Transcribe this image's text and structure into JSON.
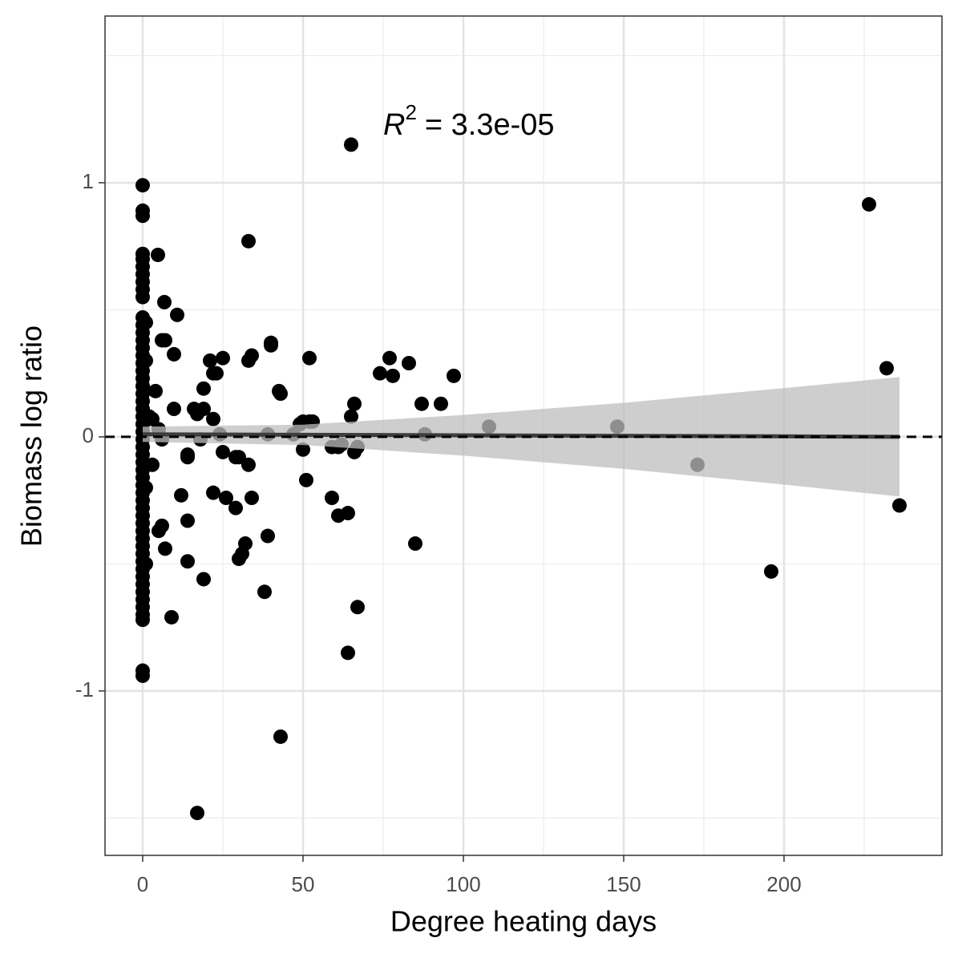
{
  "chart_data": {
    "type": "scatter",
    "x_label": "Degree heating days",
    "y_label": "Biomass log ratio",
    "annotation": {
      "symbol": "R",
      "power": "2",
      "text": "= 3.3e-05"
    },
    "xlim": [
      -11.75,
      249.25
    ],
    "ylim": [
      -1.647,
      1.656
    ],
    "xticks": [
      0,
      50,
      100,
      150,
      200
    ],
    "yticks": [
      -1,
      0,
      1
    ],
    "x_minor_ticks": [
      25,
      75,
      125,
      175,
      225
    ],
    "y_minor_ticks": [
      -1.5,
      -0.5,
      0.5,
      1.5
    ],
    "grid": true,
    "point_color": "#000000",
    "hline": 0,
    "points": {
      "x": [
        0,
        0,
        0,
        0,
        0,
        0,
        0,
        0,
        0,
        0,
        0,
        0,
        0,
        0,
        0,
        0,
        0,
        0,
        0,
        0,
        0,
        0,
        0,
        0,
        0,
        0,
        0,
        0,
        0,
        0,
        0,
        0,
        0,
        0,
        0,
        0,
        0,
        0,
        0,
        0,
        0,
        0,
        0,
        0,
        0,
        0,
        0,
        0,
        0,
        0,
        0,
        0,
        0,
        1,
        1,
        1,
        1,
        65,
        226.5,
        33,
        4.75,
        6.75,
        10.75,
        6,
        7,
        9.75,
        21,
        25,
        33,
        34,
        40,
        40,
        52,
        42.5,
        43,
        22,
        23,
        19,
        4,
        9.75,
        16,
        17,
        19,
        22,
        2,
        3,
        5,
        6,
        18,
        24,
        25,
        29,
        30,
        33,
        39,
        14,
        14,
        3,
        47,
        49,
        50,
        52,
        53,
        50,
        51,
        59,
        61,
        62,
        65,
        66,
        67,
        66,
        74,
        77,
        78,
        83,
        87,
        88,
        93,
        97,
        108,
        148,
        173,
        196,
        232,
        236,
        85,
        67,
        64,
        64,
        61,
        59,
        43,
        17,
        9,
        19,
        14,
        7,
        6,
        5,
        14,
        12,
        22,
        26,
        29,
        34,
        30,
        31,
        32,
        38,
        39
      ],
      "y": [
        0.99,
        0.89,
        0.87,
        0.72,
        0.7,
        0.67,
        0.64,
        0.61,
        0.58,
        0.55,
        0.47,
        0.44,
        0.41,
        0.38,
        0.35,
        0.32,
        0.29,
        0.26,
        0.23,
        0.2,
        0.17,
        0.14,
        0.11,
        0.08,
        0.05,
        0.02,
        -0.01,
        -0.04,
        -0.07,
        -0.1,
        -0.13,
        -0.16,
        -0.19,
        -0.22,
        -0.25,
        -0.28,
        -0.31,
        -0.34,
        -0.37,
        -0.4,
        -0.43,
        -0.46,
        -0.49,
        -0.52,
        -0.55,
        -0.58,
        -0.61,
        -0.64,
        -0.67,
        -0.7,
        -0.72,
        -0.92,
        -0.94,
        0.45,
        0.3,
        -0.2,
        -0.5,
        1.15,
        0.915,
        0.77,
        0.716,
        0.53,
        0.48,
        0.38,
        0.38,
        0.325,
        0.3,
        0.31,
        0.3,
        0.32,
        0.37,
        0.36,
        0.31,
        0.18,
        0.17,
        0.25,
        0.25,
        0.19,
        0.18,
        0.11,
        0.11,
        0.09,
        0.11,
        0.07,
        0.08,
        0.07,
        0.03,
        -0.01,
        -0.01,
        0.01,
        -0.06,
        -0.08,
        -0.08,
        -0.11,
        0.01,
        -0.07,
        -0.08,
        -0.11,
        0.01,
        0.05,
        0.06,
        0.06,
        0.06,
        -0.05,
        -0.17,
        -0.04,
        -0.04,
        -0.03,
        0.08,
        0.13,
        -0.04,
        -0.06,
        0.25,
        0.31,
        0.24,
        0.29,
        0.13,
        0.01,
        0.13,
        0.24,
        0.04,
        0.04,
        -0.11,
        -0.53,
        0.27,
        -0.27,
        -0.42,
        -0.67,
        -0.85,
        -0.3,
        -0.31,
        -0.24,
        -1.18,
        -1.48,
        -0.71,
        -0.56,
        -0.49,
        -0.44,
        -0.35,
        -0.37,
        -0.33,
        -0.23,
        -0.22,
        -0.24,
        -0.28,
        -0.24,
        -0.48,
        -0.46,
        -0.42,
        -0.61,
        -0.39
      ]
    },
    "fit": {
      "color": "#3d3d3d",
      "band_color": "#bdbdbd",
      "x": [
        0,
        50,
        100,
        150,
        200,
        236
      ],
      "y": [
        0.01,
        0.008,
        0.006,
        0.004,
        0.002,
        0.0
      ],
      "ci_upper": [
        0.04,
        0.048,
        0.086,
        0.134,
        0.192,
        0.235
      ],
      "ci_lower": [
        -0.02,
        -0.032,
        -0.074,
        -0.126,
        -0.188,
        -0.235
      ]
    }
  }
}
